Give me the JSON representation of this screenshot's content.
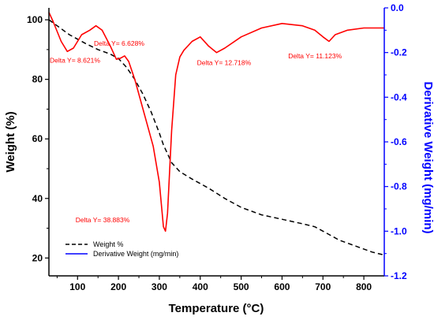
{
  "chart_data": {
    "type": "line",
    "xlabel": "Temperature (°C)",
    "ylabel_left": "Weight (%)",
    "ylabel_right": "Derivative Weight (mg/min)",
    "xlim": [
      30,
      850
    ],
    "ylim_left": [
      14,
      104
    ],
    "ylim_right": [
      -1.2,
      0.0
    ],
    "x_ticks": [
      100,
      200,
      300,
      400,
      500,
      600,
      700,
      800
    ],
    "y_left_ticks": [
      20,
      40,
      60,
      80,
      100
    ],
    "y_right_ticks": [
      0.0,
      -0.2,
      -0.4,
      -0.6,
      -0.8,
      -1.0,
      -1.2
    ],
    "y_right_tick_labels": [
      "0.0",
      "-0.2",
      "-0.4",
      "-0.6",
      "-0.8",
      "-1.0",
      "-1.2"
    ],
    "grid": false,
    "legend_position": "bottom-left",
    "colors": {
      "weight": "#000000",
      "derivative": "#ff0000",
      "legend_derivative": "#0000ff",
      "right_axis": "#0000ff"
    },
    "series": [
      {
        "name": "Weight %",
        "axis": "left",
        "style": "dashed",
        "x": [
          30,
          50,
          80,
          120,
          150,
          180,
          200,
          220,
          240,
          260,
          280,
          300,
          310,
          320,
          330,
          350,
          380,
          420,
          460,
          500,
          550,
          600,
          650,
          680,
          700,
          740,
          780,
          820,
          850
        ],
        "y": [
          100,
          98,
          95,
          92,
          90,
          88.5,
          87,
          84,
          80,
          75,
          69,
          62,
          58,
          55,
          52,
          49,
          46.5,
          43.5,
          40,
          37,
          34.5,
          33,
          31.5,
          30.5,
          29,
          26,
          24,
          22,
          21
        ]
      },
      {
        "name": "Derivative Weight (mg/min)",
        "axis": "right",
        "style": "solid",
        "x": [
          30,
          40,
          60,
          75,
          90,
          110,
          130,
          145,
          160,
          180,
          195,
          205,
          215,
          225,
          240,
          255,
          270,
          285,
          300,
          310,
          315,
          320,
          330,
          340,
          350,
          360,
          380,
          400,
          420,
          440,
          460,
          500,
          550,
          600,
          650,
          680,
          700,
          715,
          730,
          760,
          800,
          850
        ],
        "y": [
          -0.02,
          -0.06,
          -0.15,
          -0.195,
          -0.18,
          -0.12,
          -0.1,
          -0.08,
          -0.1,
          -0.17,
          -0.23,
          -0.225,
          -0.215,
          -0.24,
          -0.32,
          -0.42,
          -0.52,
          -0.62,
          -0.78,
          -0.98,
          -1.0,
          -0.92,
          -0.55,
          -0.3,
          -0.22,
          -0.19,
          -0.15,
          -0.13,
          -0.17,
          -0.2,
          -0.18,
          -0.13,
          -0.09,
          -0.07,
          -0.08,
          -0.1,
          -0.13,
          -0.15,
          -0.12,
          -0.1,
          -0.09,
          -0.09
        ]
      }
    ],
    "annotations": [
      {
        "text": "Delta Y= 8.621%",
        "x": 32,
        "y_right": -0.245
      },
      {
        "text": "Delta Y= 6.628%",
        "x": 140,
        "y_right": -0.17
      },
      {
        "text": "Delta Y= 38.883%",
        "x": 95,
        "y_right": -0.96
      },
      {
        "text": "Delta Y= 12.718%",
        "x": 392,
        "y_right": -0.255
      },
      {
        "text": "Delta Y= 11.123%",
        "x": 615,
        "y_right": -0.225
      }
    ]
  }
}
